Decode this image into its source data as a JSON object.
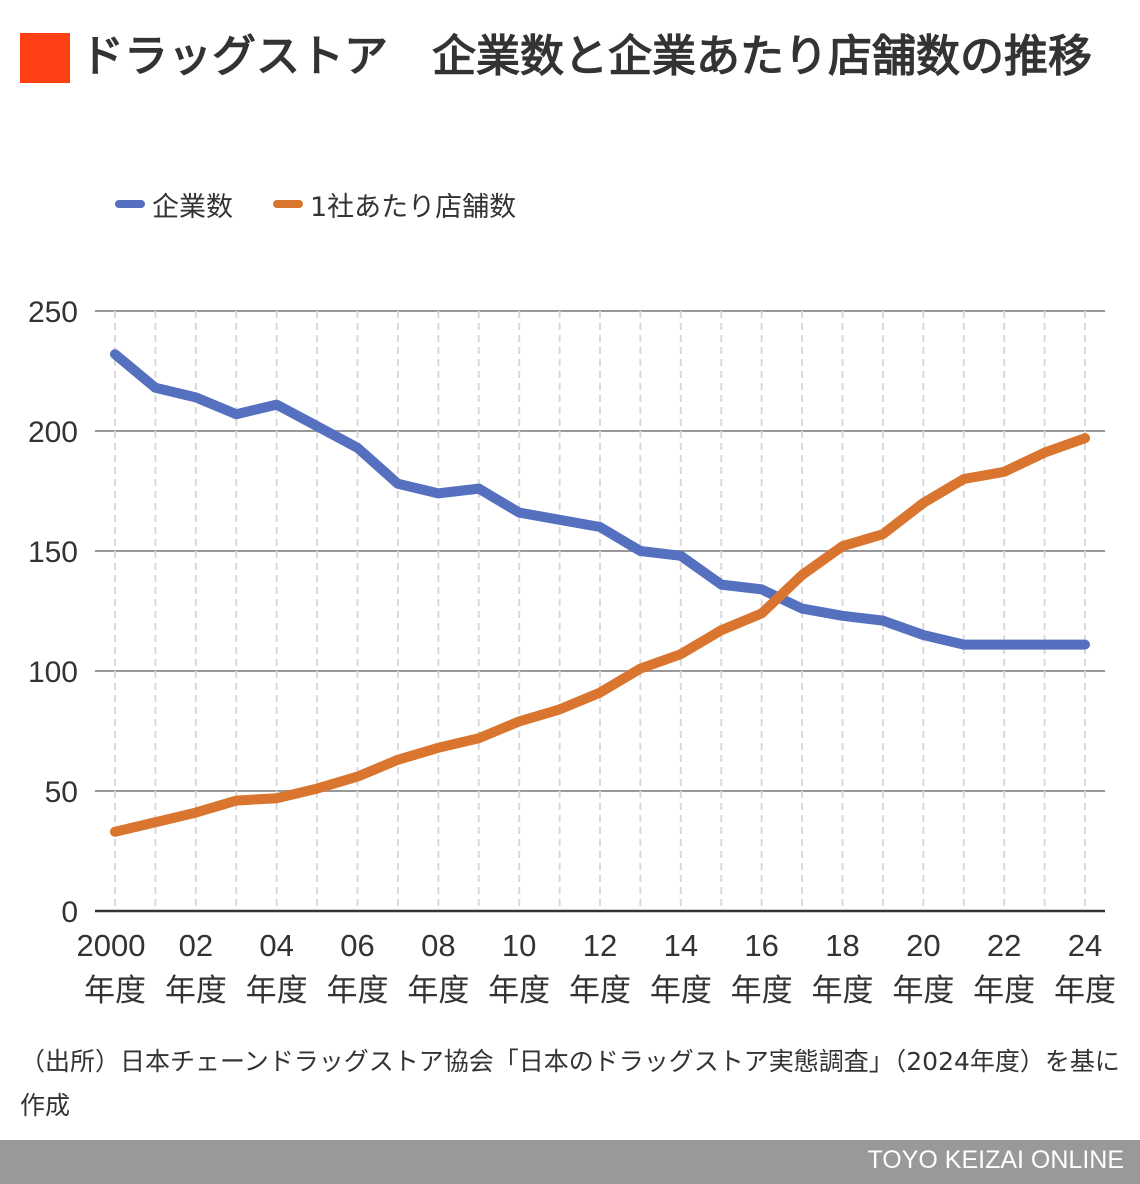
{
  "header": {
    "title": "ドラッグストア　企業数と企業あたり店舗数の推移",
    "accent_color": "#FF4014"
  },
  "source_note": "（出所）日本チェーンドラッグストア協会「日本のドラッグストア実態調査」（2024年度）を基に作成",
  "footer": {
    "brand": "TOYO KEIZAI ONLINE"
  },
  "chart_data": {
    "type": "line",
    "title": "ドラッグストア　企業数と企業あたり店舗数の推移",
    "xlabel": "",
    "ylabel": "",
    "x": [
      2000,
      2001,
      2002,
      2003,
      2004,
      2005,
      2006,
      2007,
      2008,
      2009,
      2010,
      2011,
      2012,
      2013,
      2014,
      2015,
      2016,
      2017,
      2018,
      2019,
      2020,
      2021,
      2022,
      2023,
      2024
    ],
    "x_tick_labels": [
      {
        "year": "2000",
        "unit": "年度",
        "x": 2000.5
      },
      {
        "year": "02",
        "unit": "年度",
        "x": 2002.5
      },
      {
        "year": "04",
        "unit": "年度",
        "x": 2004.5
      },
      {
        "year": "06",
        "unit": "年度",
        "x": 2006.5
      },
      {
        "year": "08",
        "unit": "年度",
        "x": 2008.5
      },
      {
        "year": "10",
        "unit": "年度",
        "x": 2010.5
      },
      {
        "year": "12",
        "unit": "年度",
        "x": 2012.5
      },
      {
        "year": "14",
        "unit": "年度",
        "x": 2014.5
      },
      {
        "year": "16",
        "unit": "年度",
        "x": 2016.5
      },
      {
        "year": "18",
        "unit": "年度",
        "x": 2018.5
      },
      {
        "year": "20",
        "unit": "年度",
        "x": 2020.5
      },
      {
        "year": "22",
        "unit": "年度",
        "x": 2022.5
      },
      {
        "year": "24",
        "unit": "年度",
        "x": 2024.5
      }
    ],
    "y_ticks": [
      0,
      50,
      100,
      150,
      200,
      250
    ],
    "ylim": [
      0,
      250
    ],
    "grid": true,
    "legend_position": "top-left",
    "series": [
      {
        "name": "企業数",
        "color": "#5470BE",
        "values": [
          232,
          218,
          214,
          207,
          211,
          202,
          193,
          178,
          174,
          176,
          166,
          163,
          160,
          150,
          148,
          136,
          134,
          126,
          123,
          121,
          115,
          111,
          111,
          111,
          111
        ]
      },
      {
        "name": "1社あたり店舗数",
        "color": "#D9752E",
        "values": [
          33,
          37,
          41,
          46,
          47,
          51,
          56,
          63,
          68,
          72,
          79,
          84,
          91,
          101,
          107,
          117,
          124,
          140,
          152,
          157,
          170,
          180,
          183,
          191,
          197
        ]
      }
    ]
  }
}
